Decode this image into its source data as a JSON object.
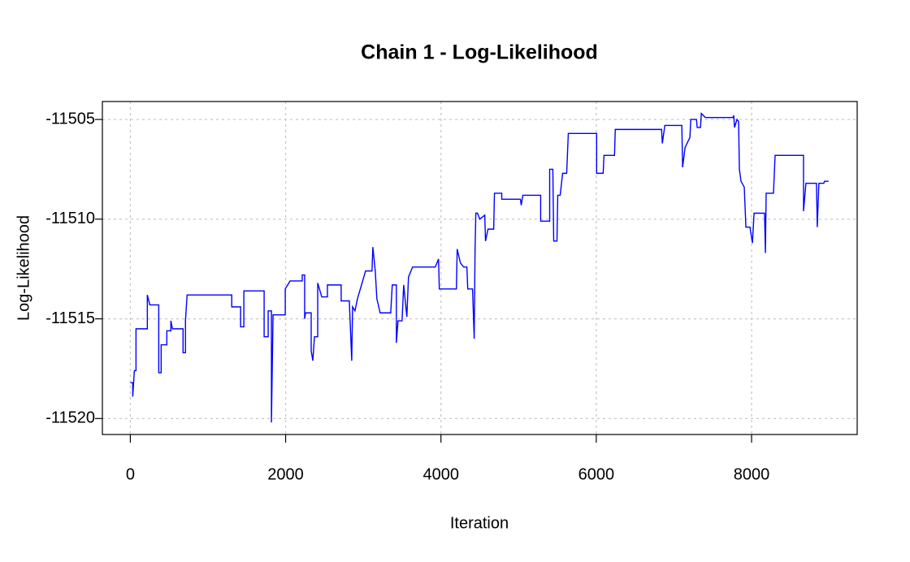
{
  "chart_data": {
    "type": "line",
    "title": "Chain 1 - Log-Likelihood",
    "xlabel": "Iteration",
    "ylabel": "Log-Likelihood",
    "color": "#0000ff",
    "grid": true,
    "xlim": [
      -360,
      9360
    ],
    "ylim": [
      -11520.8,
      -11504.1
    ],
    "xticks": [
      0,
      2000,
      4000,
      6000,
      8000
    ],
    "yticks": [
      -11520,
      -11515,
      -11510,
      -11505
    ],
    "x": [
      0,
      31,
      31,
      52,
      73,
      73,
      219,
      219,
      251,
      366,
      366,
      397,
      397,
      470,
      470,
      522,
      522,
      543,
      679,
      679,
      710,
      710,
      731,
      1306,
      1306,
      1420,
      1420,
      1462,
      1462,
      1723,
      1723,
      1775,
      1775,
      1817,
      1817,
      1838,
      1995,
      1995,
      2057,
      2214,
      2214,
      2245,
      2245,
      2256,
      2329,
      2329,
      2350,
      2371,
      2413,
      2413,
      2465,
      2538,
      2538,
      2715,
      2715,
      2820,
      2851,
      2862,
      2893,
      2924,
      2977,
      3029,
      3112,
      3123,
      3154,
      3175,
      3217,
      3353,
      3373,
      3426,
      3426,
      3447,
      3499,
      3520,
      3561,
      3582,
      3635,
      3927,
      3969,
      3979,
      4199,
      4209,
      4251,
      4293,
      4334,
      4345,
      4407,
      4428,
      4439,
      4449,
      4470,
      4501,
      4564,
      4574,
      4606,
      4679,
      4689,
      4783,
      4783,
      5023,
      5034,
      5055,
      5284,
      5284,
      5400,
      5400,
      5441,
      5452,
      5494,
      5504,
      5535,
      5567,
      5619,
      5640,
      6005,
      6005,
      6089,
      6099,
      6235,
      6245,
      6841,
      6851,
      6883,
      7102,
      7112,
      7144,
      7206,
      7217,
      7290,
      7300,
      7342,
      7353,
      7405,
      7760,
      7770,
      7781,
      7812,
      7833,
      7843,
      7864,
      7906,
      7927,
      7979,
      8011,
      8032,
      8167,
      8178,
      8188,
      8282,
      8303,
      8669,
      8669,
      8700,
      8836,
      8846,
      8867,
      8930,
      8940,
      8992
    ],
    "values": [
      -11518.2,
      -11518.2,
      -11518.9,
      -11517.6,
      -11517.6,
      -11515.5,
      -11515.5,
      -11513.8,
      -11514.3,
      -11514.3,
      -11517.7,
      -11517.7,
      -11516.3,
      -11516.3,
      -11515.6,
      -11515.6,
      -11515.1,
      -11515.5,
      -11515.5,
      -11516.7,
      -11516.7,
      -11515.1,
      -11513.8,
      -11513.8,
      -11514.4,
      -11514.4,
      -11515.4,
      -11515.4,
      -11513.6,
      -11513.6,
      -11515.9,
      -11515.9,
      -11514.6,
      -11514.6,
      -11520.2,
      -11514.8,
      -11514.8,
      -11513.5,
      -11513.1,
      -11513.1,
      -11512.8,
      -11512.8,
      -11515.0,
      -11514.7,
      -11514.7,
      -11516.6,
      -11517.1,
      -11515.9,
      -11515.9,
      -11513.2,
      -11513.9,
      -11513.9,
      -11513.3,
      -11513.3,
      -11514.1,
      -11514.1,
      -11517.1,
      -11514.4,
      -11514.6,
      -11514.0,
      -11513.3,
      -11512.6,
      -11512.6,
      -11511.4,
      -11512.6,
      -11514.0,
      -11514.7,
      -11514.7,
      -11513.3,
      -11513.3,
      -11516.2,
      -11515.1,
      -11515.1,
      -11513.3,
      -11514.9,
      -11512.9,
      -11512.4,
      -11512.4,
      -11512.0,
      -11513.5,
      -11513.5,
      -11511.5,
      -11512.2,
      -11512.4,
      -11512.4,
      -11513.5,
      -11513.5,
      -11516.0,
      -11511.6,
      -11509.7,
      -11509.7,
      -11510.0,
      -11509.8,
      -11511.1,
      -11510.5,
      -11510.5,
      -11508.7,
      -11508.7,
      -11509.0,
      -11509.0,
      -11509.3,
      -11508.8,
      -11508.8,
      -11510.1,
      -11510.1,
      -11507.5,
      -11507.5,
      -11511.1,
      -11511.1,
      -11508.8,
      -11508.8,
      -11507.7,
      -11507.7,
      -11505.7,
      -11505.7,
      -11507.7,
      -11507.7,
      -11506.8,
      -11506.8,
      -11505.5,
      -11505.5,
      -11506.2,
      -11505.3,
      -11505.3,
      -11507.4,
      -11506.4,
      -11505.9,
      -11505.0,
      -11505.0,
      -11505.4,
      -11505.4,
      -11504.7,
      -11504.9,
      -11504.9,
      -11504.8,
      -11505.4,
      -11505.0,
      -11505.1,
      -11507.5,
      -11508.1,
      -11508.4,
      -11510.4,
      -11510.4,
      -11511.2,
      -11509.7,
      -11509.7,
      -11511.7,
      -11508.7,
      -11508.7,
      -11506.8,
      -11506.8,
      -11509.6,
      -11508.2,
      -11508.2,
      -11510.4,
      -11508.2,
      -11508.2,
      -11508.1,
      -11508.1
    ]
  }
}
